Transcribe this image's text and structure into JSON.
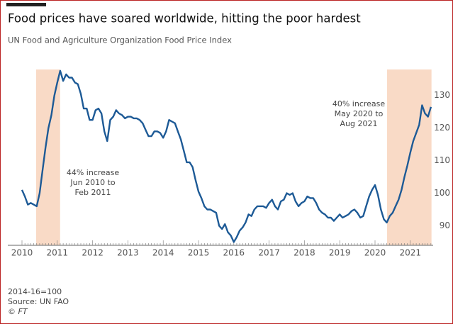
{
  "chart_data": {
    "type": "line",
    "title": "Food prices have soared worldwide, hitting the poor hardest",
    "subtitle": "UN Food and Agriculture Organization Food Price Index",
    "categories": [
      "2010",
      null,
      null,
      null,
      null,
      null,
      null,
      null,
      null,
      null,
      null,
      null,
      "2011",
      null,
      null,
      null,
      null,
      null,
      null,
      null,
      null,
      null,
      null,
      null,
      "2012",
      null,
      null,
      null,
      null,
      null,
      null,
      null,
      null,
      null,
      null,
      null,
      "2013",
      null,
      null,
      null,
      null,
      null,
      null,
      null,
      null,
      null,
      null,
      null,
      "2014",
      null,
      null,
      null,
      null,
      null,
      null,
      null,
      null,
      null,
      null,
      null,
      "2015",
      null,
      null,
      null,
      null,
      null,
      null,
      null,
      null,
      null,
      null,
      null,
      "2016",
      null,
      null,
      null,
      null,
      null,
      null,
      null,
      null,
      null,
      null,
      null,
      "2017",
      null,
      null,
      null,
      null,
      null,
      null,
      null,
      null,
      null,
      null,
      null,
      "2018",
      null,
      null,
      null,
      null,
      null,
      null,
      null,
      null,
      null,
      null,
      null,
      "2019",
      null,
      null,
      null,
      null,
      null,
      null,
      null,
      null,
      null,
      null,
      null,
      "2020",
      null,
      null,
      null,
      null,
      null,
      null,
      null,
      null,
      null,
      null,
      null,
      "2021",
      null,
      null,
      null,
      null,
      null,
      null,
      null
    ],
    "series": [
      {
        "name": "Food Price Index",
        "color": "#1d5a96",
        "values": [
          101,
          99,
          96.5,
          97,
          96.5,
          96,
          100,
          107,
          114,
          120,
          124,
          130,
          134,
          137.6,
          134.5,
          136.5,
          135.5,
          135.5,
          134,
          133.5,
          130.5,
          126,
          126,
          122.5,
          122.5,
          125.5,
          126,
          124.5,
          119,
          116,
          122.5,
          123.5,
          125.5,
          124.5,
          124,
          123,
          123.5,
          123.5,
          123,
          123,
          122.5,
          121.5,
          119.5,
          117.5,
          117.5,
          119,
          119,
          118.5,
          117,
          119,
          122.5,
          122,
          121.5,
          119,
          116.5,
          113,
          109.5,
          109.5,
          108,
          104,
          100.5,
          98.5,
          96,
          95,
          95,
          94.5,
          94,
          90,
          89,
          90.5,
          88,
          87,
          85,
          86.5,
          88.5,
          89.5,
          91,
          93.5,
          93,
          95,
          96,
          96,
          96,
          95.5,
          97,
          98,
          96,
          95,
          97.5,
          98,
          100,
          99.5,
          100,
          97.5,
          96,
          97,
          97.5,
          99,
          98.5,
          98.5,
          97,
          95,
          94,
          93.5,
          92.5,
          92.5,
          91.5,
          92.5,
          93.5,
          92.5,
          93,
          93.5,
          94.5,
          95,
          94,
          92.5,
          93,
          96,
          99,
          101,
          102.5,
          99.5,
          95,
          92,
          91,
          93,
          94,
          96,
          98,
          101,
          105,
          108.5,
          112.5,
          116,
          118.5,
          121,
          127,
          124.5,
          123.5,
          126.5
        ]
      }
    ],
    "ylim": [
      84,
      138
    ],
    "yticks": [
      90,
      100,
      110,
      120,
      130
    ],
    "grid": false,
    "highlights": [
      {
        "x": [
          2010.4,
          2011.08
        ],
        "color": "#f9dac6",
        "label": [
          "44% increase",
          "Jun 2010 to",
          "Feb 2011"
        ]
      },
      {
        "x": [
          2020.34,
          2021.6
        ],
        "color": "#f9dac6",
        "label": [
          "40% increase",
          "May 2020 to",
          "Aug 2021"
        ]
      }
    ],
    "notes": [
      "2014-16=100",
      "Source: UN FAO",
      "© FT"
    ]
  }
}
